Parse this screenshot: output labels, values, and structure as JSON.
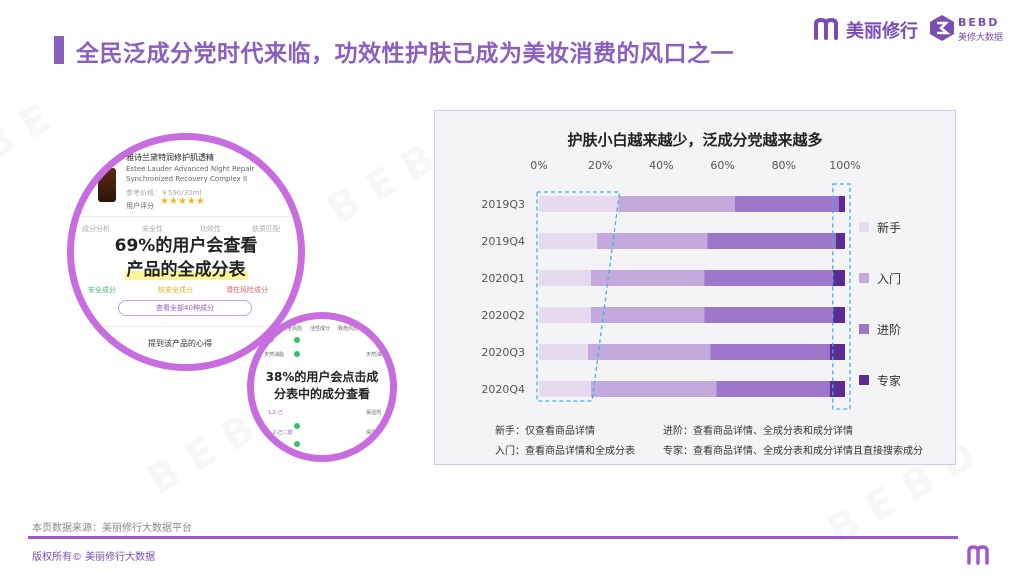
{
  "page": {
    "title": "全民泛成分党时代来临，功效性护肤已成为美妆消费的风口之一",
    "logo_text": "美丽修行",
    "logo_bebd": "BEBD",
    "logo_bebd_sub": "美修大数据",
    "source": "本页数据来源：美丽修行大数据平台",
    "copyright": "版权所有© 美丽修行大数据"
  },
  "screenshot": {
    "product_name": "雅诗兰黛特润修护肌透精",
    "product_en_1": "Estee Lauder Advanced Night Repair",
    "product_en_2": "Synchronized Recovery Complex II",
    "price": "参考价格：￥590/30ml",
    "rating_label": "用户评分",
    "stars": "★★★★★",
    "tabs": [
      "成分分析",
      "安全性",
      "功效性",
      "肤质匹配"
    ],
    "legend": [
      "安全成分",
      "较安全成分",
      "潜在风险成分"
    ],
    "button": "查看全部40种成分",
    "reviews": "提到该产品的心得",
    "callout_big_1": "69%的用户会查看",
    "callout_big_2": "产品的全成分表",
    "callout_small_1": "38%的用户会点击成",
    "callout_small_2": "分表中的成分查看",
    "table_headers": [
      "安全风险",
      "活性成分",
      "致痘风险"
    ],
    "table_rows": [
      "香精",
      "天然油脂",
      "1,2-己",
      "1,2-己二醇"
    ],
    "table_right": [
      "天然油脂",
      "保湿剂",
      "保湿剂"
    ]
  },
  "chart_data": {
    "type": "bar",
    "orientation": "horizontal",
    "stacked": "percent",
    "title": "护肤小白越来越少，泛成分党越来越多",
    "categories": [
      "2019Q3",
      "2019Q4",
      "2020Q1",
      "2020Q2",
      "2020Q3",
      "2020Q4"
    ],
    "xticks": [
      "0%",
      "20%",
      "40%",
      "60%",
      "80%",
      "100%"
    ],
    "xlim": [
      0,
      100
    ],
    "legend_position": "right",
    "series": [
      {
        "name": "新手",
        "color": "#e6dbee",
        "values": [
          26,
          19,
          17,
          17,
          16,
          17
        ]
      },
      {
        "name": "入门",
        "color": "#c3a9dc",
        "values": [
          38,
          36,
          37,
          37,
          40,
          41
        ]
      },
      {
        "name": "进阶",
        "color": "#9d77c9",
        "values": [
          34,
          42,
          42,
          42,
          39,
          37
        ]
      },
      {
        "name": "专家",
        "color": "#5e2a93",
        "values": [
          2,
          3,
          4,
          4,
          5,
          5
        ]
      }
    ],
    "notes": [
      "新手：仅查看商品详情",
      "进阶：查看商品详情、全成分表和成分详情",
      "入门：查看商品详情和全成分表",
      "专家：查看商品详情、全成分表和成分详情且直接搜索成分"
    ],
    "highlight_color": "#3ab4e6"
  }
}
